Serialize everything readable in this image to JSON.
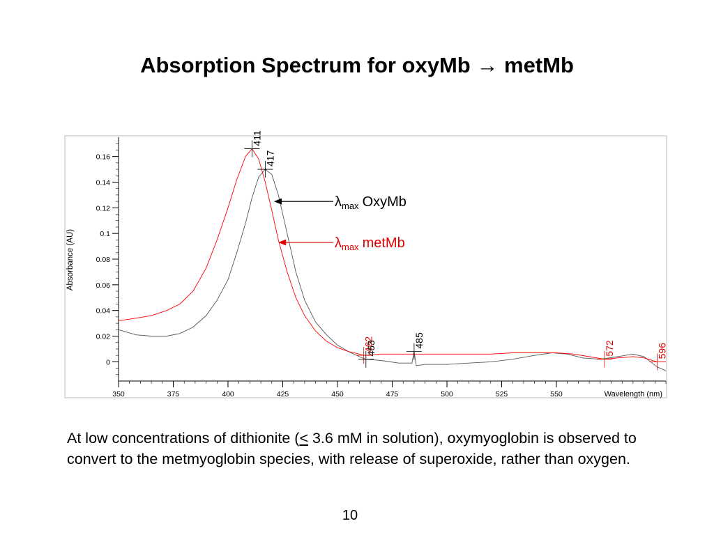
{
  "slide": {
    "title_main": "Absorption Spectrum for oxyMb",
    "title_arrow": "→",
    "title_end": "metMb",
    "caption_before": "At low concentrations of dithionite (",
    "caption_symbol": "<",
    "caption_after": " 3.6 mM in solution), oxymyoglobin is observed to convert to the metmyoglobin species, with release of superoxide, rather than oxygen.",
    "page_number": "10"
  },
  "colors": {
    "oxy": "#555555",
    "met": "#ff0000",
    "axis": "#000000",
    "red_label": "#e00000"
  },
  "chart_data": {
    "type": "line",
    "title": "",
    "xlabel": "Wavelength (nm)",
    "ylabel": "Absorbance (AU)",
    "xlim": [
      350,
      600
    ],
    "ylim": [
      -0.015,
      0.175
    ],
    "x_ticks": [
      350,
      375,
      400,
      425,
      450,
      475,
      500,
      525,
      550
    ],
    "y_ticks": [
      0,
      0.02,
      0.04,
      0.06,
      0.08,
      0.1,
      0.12,
      0.14,
      0.16
    ],
    "y_tick_labels": [
      "0",
      "0.02",
      "0.04",
      "0.06",
      "0.08",
      "0.1",
      "0.12",
      "0.14",
      "0.16"
    ],
    "grid": false,
    "series": [
      {
        "name": "OxyMb",
        "color": "#555555",
        "points": [
          [
            350,
            0.025
          ],
          [
            358,
            0.021
          ],
          [
            365,
            0.02
          ],
          [
            372,
            0.02
          ],
          [
            378,
            0.022
          ],
          [
            384,
            0.027
          ],
          [
            390,
            0.036
          ],
          [
            395,
            0.048
          ],
          [
            400,
            0.064
          ],
          [
            404,
            0.085
          ],
          [
            408,
            0.108
          ],
          [
            411,
            0.128
          ],
          [
            414,
            0.144
          ],
          [
            417,
            0.15
          ],
          [
            420,
            0.146
          ],
          [
            423,
            0.13
          ],
          [
            427,
            0.1
          ],
          [
            431,
            0.07
          ],
          [
            435,
            0.048
          ],
          [
            440,
            0.031
          ],
          [
            445,
            0.021
          ],
          [
            450,
            0.013
          ],
          [
            455,
            0.008
          ],
          [
            460,
            0.004
          ],
          [
            463,
            0.002
          ],
          [
            470,
            0.001
          ],
          [
            478,
            -0.001
          ],
          [
            484,
            -0.001
          ],
          [
            485,
            0.008
          ],
          [
            486,
            -0.003
          ],
          [
            490,
            -0.002
          ],
          [
            500,
            -0.002
          ],
          [
            510,
            -0.001
          ],
          [
            520,
            0.0
          ],
          [
            530,
            0.002
          ],
          [
            540,
            0.005
          ],
          [
            548,
            0.007
          ],
          [
            555,
            0.006
          ],
          [
            562,
            0.003
          ],
          [
            570,
            0.002
          ],
          [
            578,
            0.004
          ],
          [
            585,
            0.006
          ],
          [
            590,
            0.004
          ],
          [
            596,
            -0.004
          ],
          [
            600,
            -0.007
          ]
        ]
      },
      {
        "name": "metMb",
        "color": "#ff0000",
        "points": [
          [
            350,
            0.032
          ],
          [
            358,
            0.034
          ],
          [
            365,
            0.036
          ],
          [
            372,
            0.04
          ],
          [
            378,
            0.045
          ],
          [
            384,
            0.055
          ],
          [
            390,
            0.073
          ],
          [
            395,
            0.095
          ],
          [
            400,
            0.12
          ],
          [
            404,
            0.142
          ],
          [
            408,
            0.16
          ],
          [
            411,
            0.166
          ],
          [
            414,
            0.158
          ],
          [
            417,
            0.14
          ],
          [
            420,
            0.118
          ],
          [
            423,
            0.095
          ],
          [
            427,
            0.07
          ],
          [
            431,
            0.05
          ],
          [
            435,
            0.036
          ],
          [
            440,
            0.024
          ],
          [
            445,
            0.016
          ],
          [
            450,
            0.011
          ],
          [
            455,
            0.008
          ],
          [
            460,
            0.006
          ],
          [
            462,
            0.005
          ],
          [
            470,
            0.006
          ],
          [
            478,
            0.006
          ],
          [
            485,
            0.006
          ],
          [
            490,
            0.006
          ],
          [
            500,
            0.006
          ],
          [
            510,
            0.006
          ],
          [
            520,
            0.006
          ],
          [
            530,
            0.007
          ],
          [
            540,
            0.007
          ],
          [
            550,
            0.007
          ],
          [
            558,
            0.006
          ],
          [
            565,
            0.004
          ],
          [
            572,
            0.002
          ],
          [
            578,
            0.003
          ],
          [
            585,
            0.004
          ],
          [
            590,
            0.003
          ],
          [
            596,
            0.0
          ],
          [
            600,
            0.0
          ]
        ]
      }
    ],
    "peak_labels": [
      {
        "text": "411",
        "x": 411,
        "y": 0.166,
        "color": "#000000"
      },
      {
        "text": "417",
        "x": 417,
        "y": 0.15,
        "color": "#000000"
      },
      {
        "text": "462",
        "x": 462,
        "y": 0.005,
        "color": "#e00000"
      },
      {
        "text": "463",
        "x": 463,
        "y": 0.002,
        "color": "#000000"
      },
      {
        "text": "485",
        "x": 485,
        "y": 0.008,
        "color": "#000000"
      },
      {
        "text": "572",
        "x": 572,
        "y": 0.002,
        "color": "#e00000"
      },
      {
        "text": "596",
        "x": 596,
        "y": 0.0,
        "color": "#e00000"
      }
    ],
    "callouts": [
      {
        "lambda": "λ",
        "subscript": "max",
        "text": "OxyMb",
        "color": "#000000",
        "target_x": 421,
        "target_y": 0.125
      },
      {
        "lambda": "λ",
        "subscript": "max",
        "text": "metMb",
        "color": "#e00000",
        "target_x": 423,
        "target_y": 0.093
      }
    ]
  }
}
